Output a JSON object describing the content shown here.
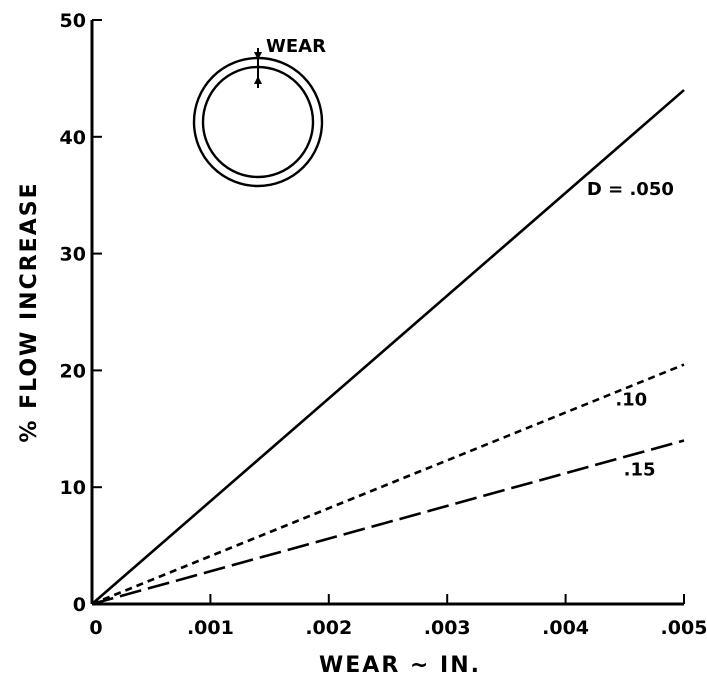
{
  "chart_data": {
    "type": "line",
    "title": "",
    "xlabel": "WEAR ~ IN.",
    "ylabel": "% FLOW INCREASE",
    "xlim": [
      0,
      0.005
    ],
    "ylim": [
      0,
      50
    ],
    "x_ticks": [
      0,
      0.001,
      0.002,
      0.003,
      0.004,
      0.005
    ],
    "x_tick_labels": [
      "0",
      ".001",
      ".002",
      ".003",
      ".004",
      ".005"
    ],
    "y_ticks": [
      0,
      10,
      20,
      30,
      40,
      50
    ],
    "y_tick_labels": [
      "0",
      "10",
      "20",
      "30",
      "40",
      "50"
    ],
    "grid": false,
    "series": [
      {
        "label": "D = .050",
        "style": "solid",
        "x": [
          0,
          0.005
        ],
        "y": [
          0,
          44
        ]
      },
      {
        "label": ".10",
        "style": "dashed",
        "x": [
          0,
          0.005
        ],
        "y": [
          0,
          20.5
        ]
      },
      {
        "label": ".15",
        "style": "long-dash",
        "x": [
          0,
          0.005
        ],
        "y": [
          0,
          14
        ]
      }
    ],
    "annotations": [
      {
        "text": "WEAR",
        "note": "inset sketch of a worn ring with an arrow marking the wear thickness"
      }
    ]
  },
  "colors": {
    "ink": "#000000",
    "background": "#ffffff"
  }
}
